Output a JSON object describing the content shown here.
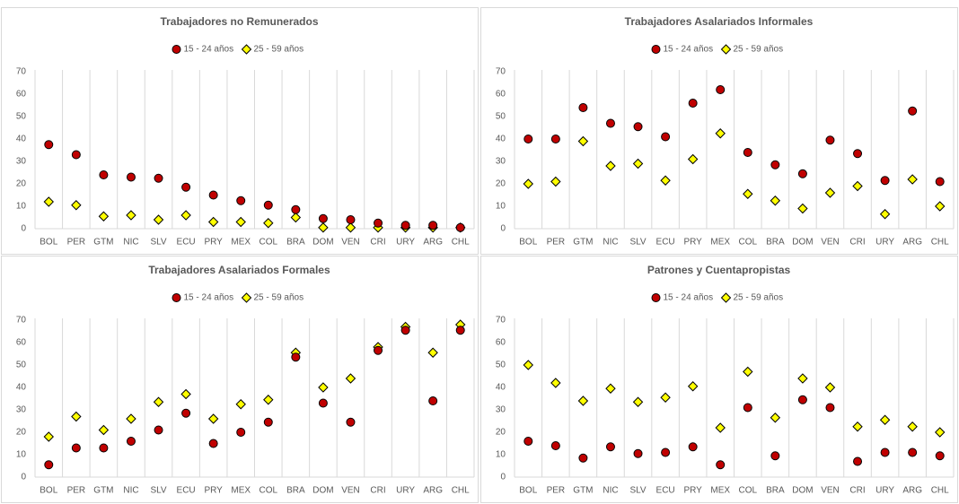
{
  "chart_data": [
    {
      "type": "dot",
      "title": "Trabajadores no Remunerados",
      "categories": [
        "BOL",
        "PER",
        "GTM",
        "NIC",
        "SLV",
        "ECU",
        "PRY",
        "MEX",
        "COL",
        "BRA",
        "DOM",
        "VEN",
        "CRI",
        "URY",
        "ARG",
        "CHL"
      ],
      "series": [
        {
          "name": "15 - 24 años",
          "color": "#c00000",
          "marker": "circle",
          "values": [
            37.5,
            33,
            24,
            23,
            22.5,
            18.5,
            15,
            12.5,
            10.5,
            8.5,
            4.5,
            4,
            2.5,
            1.5,
            1.5,
            0.5
          ]
        },
        {
          "name": "25 - 59 años",
          "color": "#ffff00",
          "marker": "diamond",
          "values": [
            12,
            10.5,
            5.5,
            6,
            4,
            6,
            3,
            3,
            2.5,
            5,
            0.5,
            0.5,
            0.5,
            0.5,
            0.5,
            0.5
          ]
        }
      ],
      "ylim": [
        0,
        70
      ],
      "yticks": [
        0,
        10,
        20,
        30,
        40,
        50,
        60,
        70
      ]
    },
    {
      "type": "dot",
      "title": "Trabajadores Asalariados Informales",
      "categories": [
        "BOL",
        "PER",
        "GTM",
        "NIC",
        "SLV",
        "ECU",
        "PRY",
        "MEX",
        "COL",
        "BRA",
        "DOM",
        "VEN",
        "CRI",
        "URY",
        "ARG",
        "CHL"
      ],
      "series": [
        {
          "name": "15 - 24 años",
          "color": "#c00000",
          "marker": "circle",
          "values": [
            40,
            40,
            54,
            47,
            45.5,
            41,
            56,
            62,
            34,
            28.5,
            24.5,
            39.5,
            33.5,
            21.5,
            52.5,
            21
          ]
        },
        {
          "name": "25 - 59 años",
          "color": "#ffff00",
          "marker": "diamond",
          "values": [
            20,
            21,
            39,
            28,
            29,
            21.5,
            31,
            42.5,
            15.5,
            12.5,
            9,
            16,
            19,
            6.5,
            22,
            10
          ]
        }
      ],
      "ylim": [
        0,
        70
      ],
      "yticks": [
        0,
        10,
        20,
        30,
        40,
        50,
        60,
        70
      ]
    },
    {
      "type": "dot",
      "title": "Trabajadores Asalariados Formales",
      "categories": [
        "BOL",
        "PER",
        "GTM",
        "NIC",
        "SLV",
        "ECU",
        "PRY",
        "MEX",
        "COL",
        "BRA",
        "DOM",
        "VEN",
        "CRI",
        "URY",
        "ARG",
        "CHL"
      ],
      "series": [
        {
          "name": "15 - 24 años",
          "color": "#c00000",
          "marker": "circle",
          "values": [
            5.5,
            13,
            13,
            16,
            21,
            28.5,
            15,
            20,
            24.5,
            53.5,
            33,
            24.5,
            56.5,
            65.5,
            34,
            65.5
          ]
        },
        {
          "name": "25 - 59 años",
          "color": "#ffff00",
          "marker": "diamond",
          "values": [
            18,
            27,
            21,
            26,
            33.5,
            37,
            26,
            32.5,
            34.5,
            55.5,
            40,
            44,
            58,
            67,
            55.5,
            68
          ]
        }
      ],
      "ylim": [
        0,
        70
      ],
      "yticks": [
        0,
        10,
        20,
        30,
        40,
        50,
        60,
        70
      ]
    },
    {
      "type": "dot",
      "title": "Patrones y Cuentapropistas",
      "categories": [
        "BOL",
        "PER",
        "GTM",
        "NIC",
        "SLV",
        "ECU",
        "PRY",
        "MEX",
        "COL",
        "BRA",
        "DOM",
        "VEN",
        "CRI",
        "URY",
        "ARG",
        "CHL"
      ],
      "series": [
        {
          "name": "15 - 24 años",
          "color": "#c00000",
          "marker": "circle",
          "values": [
            16,
            14,
            8.5,
            13.5,
            10.5,
            11,
            13.5,
            5.5,
            31,
            9.5,
            34.5,
            31,
            7,
            11,
            11,
            9.5
          ]
        },
        {
          "name": "25 - 59 años",
          "color": "#ffff00",
          "marker": "diamond",
          "values": [
            50,
            42,
            34,
            39.5,
            33.5,
            35.5,
            40.5,
            22,
            47,
            26.5,
            44,
            40,
            22.5,
            25.5,
            22.5,
            20
          ]
        }
      ],
      "ylim": [
        0,
        70
      ],
      "yticks": [
        0,
        10,
        20,
        30,
        40,
        50,
        60,
        70
      ]
    }
  ]
}
